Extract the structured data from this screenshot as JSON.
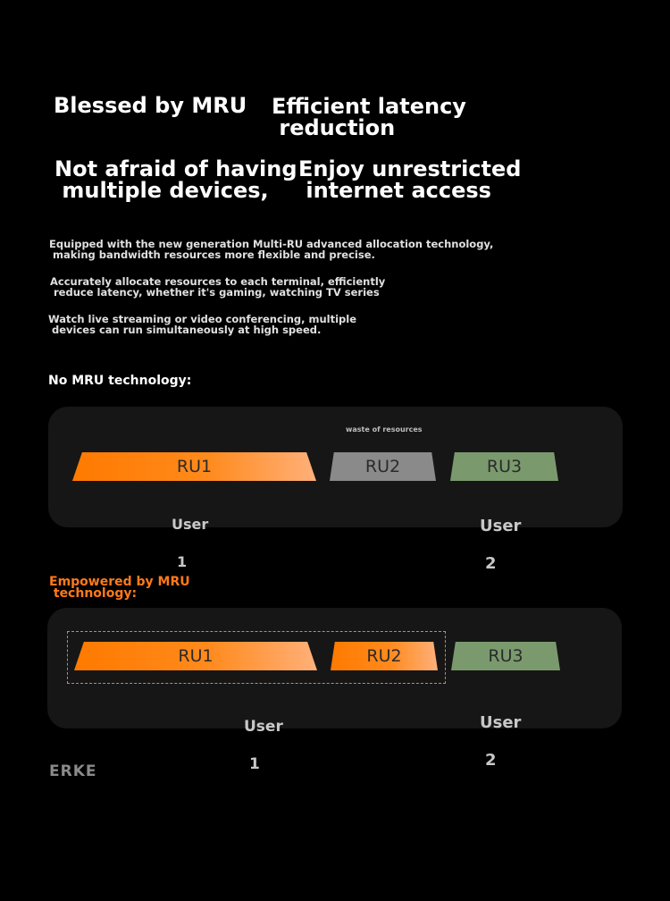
{
  "headlines": {
    "h1": "Blessed by MRU",
    "h2_line1": "Efficient latency",
    "h2_line2": " reduction",
    "h3_line1": "Not afraid of having",
    "h3_line2": " multiple devices,",
    "h4_line1": "Enjoy unrestricted",
    "h4_line2": " internet access"
  },
  "paragraphs": {
    "p1_line1": "Equipped with the new generation Multi-RU advanced allocation technology,",
    "p1_line2": " making bandwidth resources more flexible and precise.",
    "p2_line1": "Accurately allocate resources to each terminal, efficiently",
    "p2_line2": " reduce latency, whether it's gaming, watching TV series",
    "p3_line1": "Watch live streaming or video conferencing, multiple",
    "p3_line2": " devices can run simultaneously at high speed."
  },
  "no_mru": {
    "label": "No MRU technology:",
    "waste_label": "waste of resources",
    "ru1": "RU1",
    "ru2": "RU2",
    "ru3": "RU3",
    "user1_line1": "User",
    "user1_line2": "1",
    "user2_line1": "User",
    "user2_line2": "2"
  },
  "mru": {
    "label_line1": "Empowered by MRU",
    "label_line2": " technology:",
    "ru1": "RU1",
    "ru2": "RU2",
    "ru3": "RU3",
    "user1_line1": "User",
    "user1_line2": "1",
    "user2_line1": "User",
    "user2_line2": "2"
  },
  "brand": "ERKE",
  "colors": {
    "background": "#000000",
    "panel": "#161616",
    "accent_orange": "#ff7a00",
    "ru_gray": "#8a8a8a",
    "ru_green": "#7a9a6e"
  }
}
